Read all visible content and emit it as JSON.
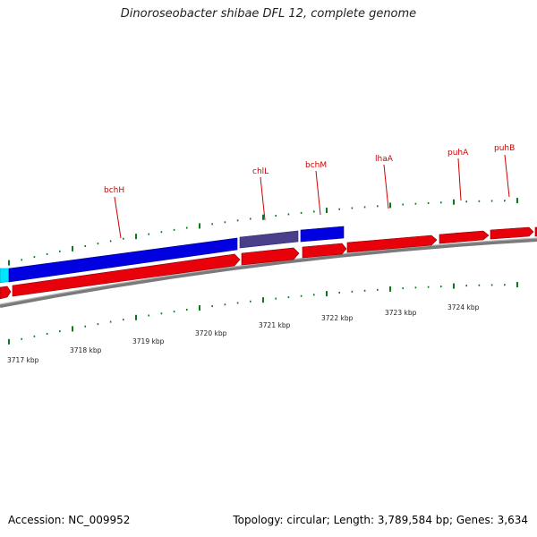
{
  "title": "Dinoroseobacter shibae DFL 12, complete genome",
  "footer": {
    "accession": "Accession: NC_009952",
    "stats": "Topology: circular; Length: 3,789,584 bp; Genes: 3,634"
  },
  "colors": {
    "forward_gene": "#e8000b",
    "reverse_gene": "#0000e0",
    "selected_gene": "#4a3f8a",
    "cyan_gene": "#00e5ff",
    "backbone": "#888888",
    "tick": "#0a7a1a",
    "gene_label": "#cc0000"
  },
  "gene_labels": [
    "bchH",
    "chlL",
    "bchM",
    "lhaA",
    "puhA",
    "puhB"
  ],
  "scale_labels": [
    "3717 kbp",
    "3718 kbp",
    "3719 kbp",
    "3720 kbp",
    "3721 kbp",
    "3722 kbp",
    "3723 kbp",
    "3724 kbp"
  ]
}
